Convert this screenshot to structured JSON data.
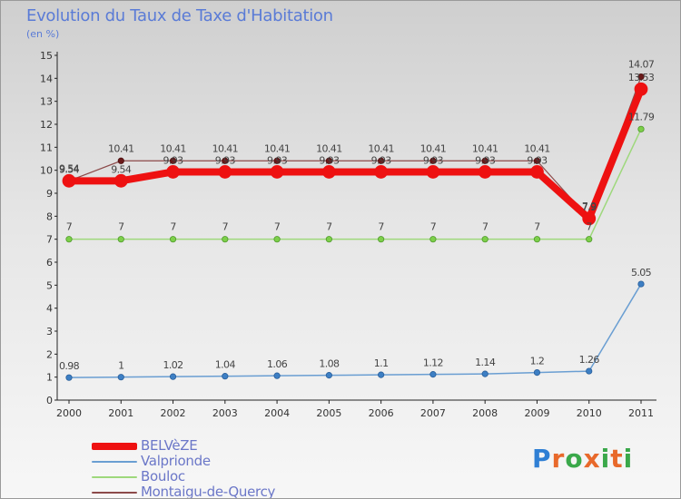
{
  "header": {
    "title": "Evolution du Taux de Taxe d'Habitation",
    "subtitle": "(en %)"
  },
  "logo": {
    "text": "Proxiti",
    "letters": [
      "P",
      "r",
      "o",
      "x",
      "i",
      "t",
      "i"
    ],
    "letter_colors": [
      "#2f7fd4",
      "#e8692b",
      "#3aa84a",
      "#e8692b",
      "#3aa84a",
      "#e8692b",
      "#3aa84a"
    ]
  },
  "chart_data": {
    "type": "line",
    "title": "Evolution du Taux de Taxe d'Habitation",
    "subtitle": "(en %)",
    "categories": [
      "2000",
      "2001",
      "2002",
      "2003",
      "2004",
      "2005",
      "2006",
      "2007",
      "2008",
      "2009",
      "2010",
      "2011"
    ],
    "ylim": [
      0,
      15
    ],
    "yticks": [
      0,
      1,
      2,
      3,
      4,
      5,
      6,
      7,
      8,
      9,
      10,
      11,
      12,
      13,
      14,
      15
    ],
    "grid": false,
    "legend_position": "bottom-left",
    "series": [
      {
        "name": "BELVèZE",
        "color": "#ee1111",
        "values": [
          9.54,
          9.54,
          9.93,
          9.93,
          9.93,
          9.93,
          9.93,
          9.93,
          9.93,
          9.93,
          7.9,
          13.53
        ],
        "labels": [
          "9.54",
          "9.54",
          "9.93",
          "9.93",
          "9.93",
          "9.93",
          "9.93",
          "9.93",
          "9.93",
          "9.93",
          "7.9",
          "13.53"
        ]
      },
      {
        "name": "Valprionde",
        "color": "#6a9ed2",
        "values": [
          0.98,
          1,
          1.02,
          1.04,
          1.06,
          1.08,
          1.1,
          1.12,
          1.14,
          1.2,
          1.26,
          5.05
        ],
        "labels": [
          "0.98",
          "1",
          "1.02",
          "1.04",
          "1.06",
          "1.08",
          "1.1",
          "1.12",
          "1.14",
          "1.2",
          "1.26",
          "5.05"
        ]
      },
      {
        "name": "Bouloc",
        "color": "#9ed87c",
        "values": [
          7,
          7,
          7,
          7,
          7,
          7,
          7,
          7,
          7,
          7,
          7,
          11.79
        ],
        "labels": [
          "7",
          "7",
          "7",
          "7",
          "7",
          "7",
          "7",
          "7",
          "7",
          "7",
          "7",
          "11.79"
        ]
      },
      {
        "name": "Montaigu-de-Quercy",
        "color": "#8c4a4a",
        "values": [
          9.54,
          10.41,
          10.41,
          10.41,
          10.41,
          10.41,
          10.41,
          10.41,
          10.41,
          10.41,
          7.9,
          14.07
        ],
        "labels": [
          "9.54",
          "10.41",
          "10.41",
          "10.41",
          "10.41",
          "10.41",
          "10.41",
          "10.41",
          "10.41",
          "10.41",
          "7.9",
          "14.07"
        ]
      }
    ]
  }
}
